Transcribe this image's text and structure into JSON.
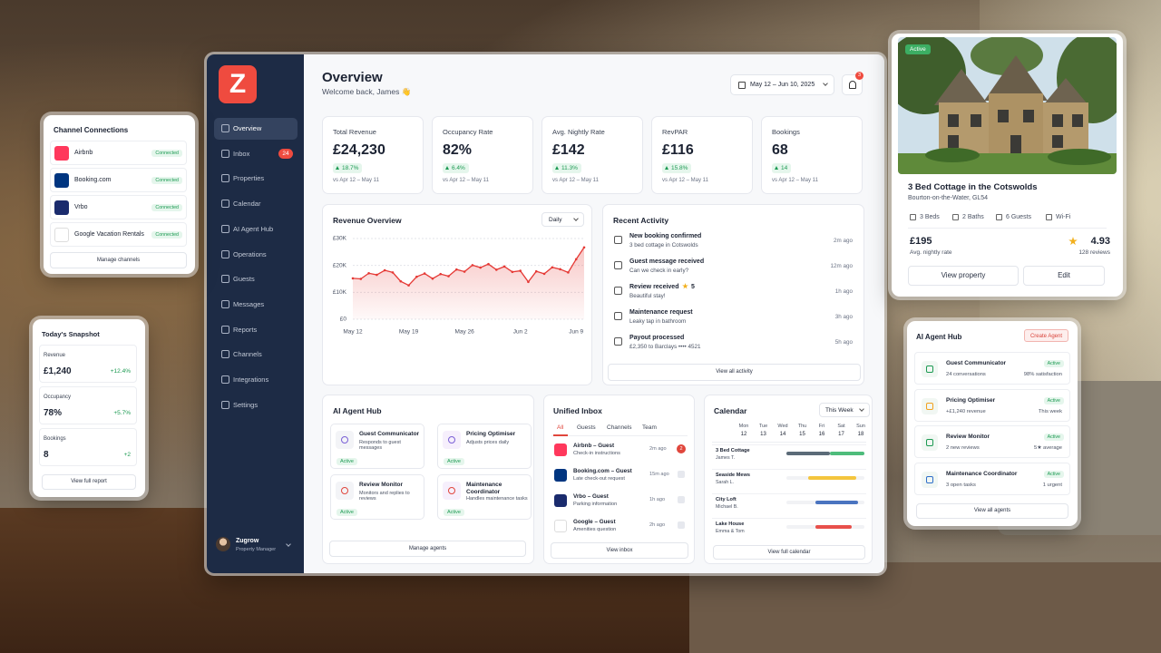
{
  "sidebar": {
    "logo": "Z",
    "nav": [
      {
        "label": "Overview"
      },
      {
        "label": "Inbox",
        "badge": "24"
      },
      {
        "label": "Properties"
      },
      {
        "label": "Calendar"
      },
      {
        "label": "AI Agent Hub"
      },
      {
        "label": "Operations"
      },
      {
        "label": "Guests"
      },
      {
        "label": "Messages"
      },
      {
        "label": "Reports"
      },
      {
        "label": "Channels"
      },
      {
        "label": "Integrations"
      },
      {
        "label": "Settings"
      }
    ],
    "user": {
      "name": "Zugrow",
      "role": "Property Manager"
    }
  },
  "header": {
    "title": "Overview",
    "subtitle": "Welcome back, James 👋",
    "date_range": "May 12 – Jun 10, 2025",
    "notifications": "3"
  },
  "kpis": [
    {
      "label": "Total Revenue",
      "value": "£24,230",
      "change": "18.7%",
      "period": "vs Apr 12 – May 11"
    },
    {
      "label": "Occupancy Rate",
      "value": "82%",
      "change": "6.4%",
      "period": "vs Apr 12 – May 11"
    },
    {
      "label": "Avg. Nightly Rate",
      "value": "£142",
      "change": "11.3%",
      "period": "vs Apr 12 – May 11"
    },
    {
      "label": "RevPAR",
      "value": "£116",
      "change": "15.8%",
      "period": "vs Apr 12 – May 11"
    },
    {
      "label": "Bookings",
      "value": "68",
      "change": "14",
      "period": "vs Apr 12 – May 11"
    }
  ],
  "chart_data": {
    "type": "line",
    "title": "Revenue Overview",
    "granularity": "Daily",
    "categories": [
      "May 12",
      null,
      null,
      null,
      null,
      null,
      null,
      "May 19",
      null,
      null,
      null,
      null,
      null,
      null,
      "May 26",
      null,
      null,
      null,
      null,
      null,
      null,
      "Jun 2",
      null,
      null,
      null,
      null,
      null,
      null,
      "Jun 9",
      null
    ],
    "values": [
      15200,
      15000,
      17100,
      16500,
      18200,
      17400,
      14100,
      12600,
      15800,
      17000,
      15100,
      16800,
      16000,
      18500,
      17700,
      20100,
      19200,
      20500,
      18400,
      19600,
      17600,
      18000,
      13900,
      17800,
      16900,
      19300,
      18600,
      17400,
      22300,
      26700
    ],
    "color": "#e53935",
    "ylim": [
      0,
      30000
    ],
    "yticks": [
      {
        "value": 0,
        "label": "£0"
      },
      {
        "value": 10000,
        "label": "£10K"
      },
      {
        "value": 20000,
        "label": "£20K"
      },
      {
        "value": 30000,
        "label": "£30K"
      }
    ],
    "grid": true
  },
  "recent_activity": {
    "title": "Recent Activity",
    "items": [
      {
        "title": "New booking confirmed",
        "detail": "3 bed cottage in Cotswolds",
        "time": "2m ago"
      },
      {
        "title": "Guest message received",
        "detail": "Can we check in early?",
        "time": "12m ago"
      },
      {
        "title": "Review received",
        "rating": "5",
        "detail": "Beautiful stay!",
        "time": "1h ago"
      },
      {
        "title": "Maintenance request",
        "detail": "Leaky tap in bathroom",
        "time": "3h ago"
      },
      {
        "title": "Payout processed",
        "detail": "£2,350 to Barclays •••• 4521",
        "time": "5h ago"
      }
    ],
    "footer": "View all activity"
  },
  "ai_agent_hub": {
    "title": "AI Agent Hub",
    "agents": [
      {
        "name": "Guest Communicator",
        "desc": "Responds to guest messages",
        "status": "Active"
      },
      {
        "name": "Pricing Optimiser",
        "desc": "Adjusts prices daily",
        "status": "Active"
      },
      {
        "name": "Review Monitor",
        "desc": "Monitors and replies to reviews",
        "status": "Active"
      },
      {
        "name": "Maintenance Coordinator",
        "desc": "Handles maintenance tasks",
        "status": "Active"
      }
    ],
    "footer": "Manage agents"
  },
  "unified_inbox": {
    "title": "Unified Inbox",
    "tabs": [
      "All",
      "Guests",
      "Channels",
      "Team"
    ],
    "messages": [
      {
        "from": "Airbnb – Guest",
        "text": "Check-in instructions",
        "time": "2m ago",
        "badge": "2"
      },
      {
        "from": "Booking.com – Guest",
        "text": "Late check-out request",
        "time": "15m ago"
      },
      {
        "from": "Vrbo – Guest",
        "text": "Parking information",
        "time": "1h ago"
      },
      {
        "from": "Google – Guest",
        "text": "Amenities question",
        "time": "2h ago"
      }
    ],
    "footer": "View inbox"
  },
  "calendar": {
    "title": "Calendar",
    "range": "This Week",
    "days": [
      {
        "day": "Mon",
        "date": "12"
      },
      {
        "day": "Tue",
        "date": "13"
      },
      {
        "day": "Wed",
        "date": "14"
      },
      {
        "day": "Thu",
        "date": "15"
      },
      {
        "day": "Fri",
        "date": "16"
      },
      {
        "day": "Sat",
        "date": "17"
      },
      {
        "day": "Sun",
        "date": "18"
      }
    ],
    "rows": [
      {
        "name": "3 Bed Cottage",
        "guest": "James T."
      },
      {
        "name": "Seaside Mews",
        "guest": "Sarah L."
      },
      {
        "name": "City Loft",
        "guest": "Michael B."
      },
      {
        "name": "Lake House",
        "guest": "Emma & Tom"
      }
    ],
    "footer": "View full calendar"
  },
  "channel_connections": {
    "title": "Channel Connections",
    "channels": [
      {
        "name": "Airbnb",
        "status": "Connected"
      },
      {
        "name": "Booking.com",
        "status": "Connected"
      },
      {
        "name": "Vrbo",
        "status": "Connected"
      },
      {
        "name": "Google Vacation Rentals",
        "status": "Connected"
      }
    ],
    "footer": "Manage channels"
  },
  "todays_snapshot": {
    "title": "Today's Snapshot",
    "metrics": [
      {
        "label": "Revenue",
        "value": "£1,240",
        "change": "+12.4%"
      },
      {
        "label": "Occupancy",
        "value": "78%",
        "change": "+5.7%"
      },
      {
        "label": "Bookings",
        "value": "8",
        "change": "+2"
      }
    ],
    "footer": "View full report"
  },
  "property": {
    "badge": "Active",
    "name": "3 Bed Cottage in the Cotswolds",
    "location": "Bourton-on-the-Water, GL54",
    "features": [
      "3 Beds",
      "2 Baths",
      "6 Guests",
      "Wi-Fi"
    ],
    "price": "£195",
    "price_label": "Avg. nightly rate",
    "rating": "4.93",
    "reviews": "128 reviews",
    "actions": [
      "View property",
      "Edit"
    ]
  },
  "agent_panel": {
    "title": "AI Agent Hub",
    "action": "Create Agent",
    "agents": [
      {
        "name": "Guest Communicator",
        "status": "Active",
        "left": "24 conversations",
        "right": "98% satisfaction"
      },
      {
        "name": "Pricing Optimiser",
        "status": "Active",
        "left": "+£1,240 revenue",
        "right": "This week"
      },
      {
        "name": "Review Monitor",
        "status": "Active",
        "left": "2 new reviews",
        "right": "5★ average"
      },
      {
        "name": "Maintenance Coordinator",
        "status": "Active",
        "left": "3 open tasks",
        "right": "1 urgent"
      }
    ],
    "footer": "View all agents"
  }
}
